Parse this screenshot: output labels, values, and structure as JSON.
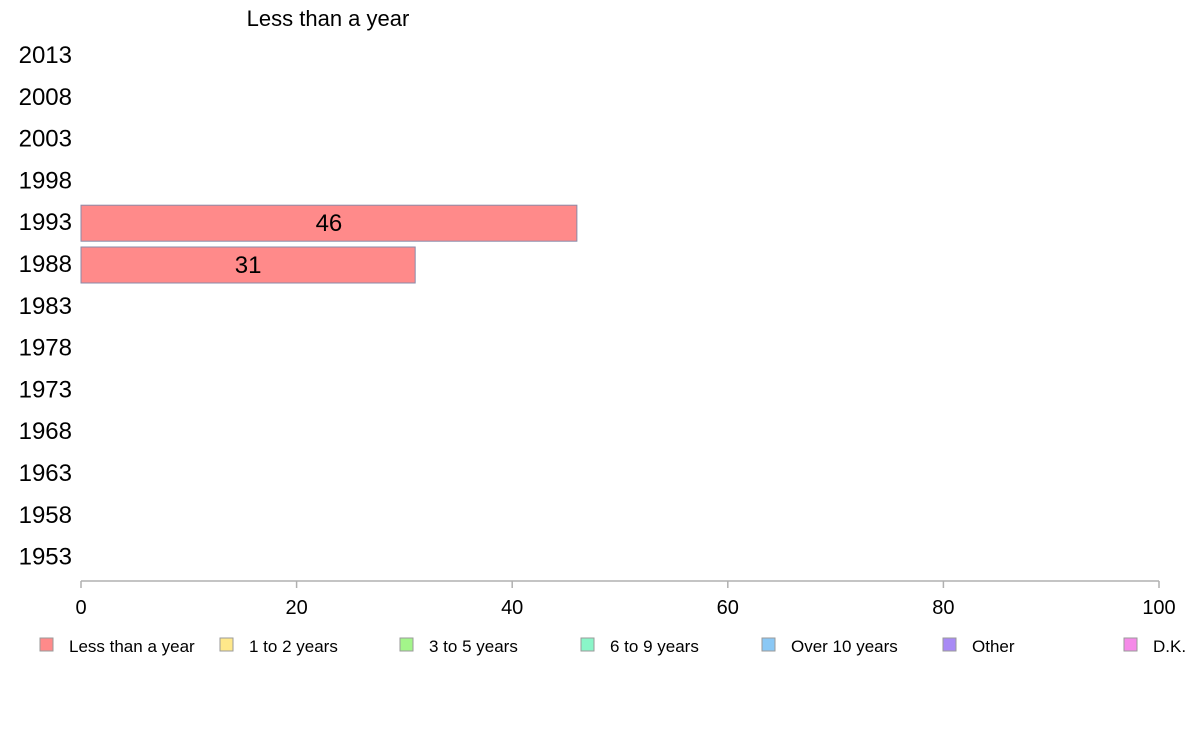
{
  "chart_data": {
    "type": "bar",
    "orientation": "horizontal",
    "stacked": true,
    "title": "Less than a year",
    "categories": [
      "2013",
      "2008",
      "2003",
      "1998",
      "1993",
      "1988",
      "1983",
      "1978",
      "1973",
      "1968",
      "1963",
      "1958",
      "1953"
    ],
    "series": [
      {
        "name": "Less than a year",
        "color": "#ff8a8a",
        "values": [
          null,
          null,
          null,
          null,
          46,
          31,
          null,
          null,
          null,
          null,
          null,
          null,
          null
        ]
      },
      {
        "name": "1 to 2 years",
        "color": "#ffe88a",
        "values": [
          null,
          null,
          null,
          null,
          null,
          null,
          null,
          null,
          null,
          null,
          null,
          null,
          null
        ]
      },
      {
        "name": "3 to 5 years",
        "color": "#a3f58a",
        "values": [
          null,
          null,
          null,
          null,
          null,
          null,
          null,
          null,
          null,
          null,
          null,
          null,
          null
        ]
      },
      {
        "name": "6 to 9 years",
        "color": "#8af5c8",
        "values": [
          null,
          null,
          null,
          null,
          null,
          null,
          null,
          null,
          null,
          null,
          null,
          null,
          null
        ]
      },
      {
        "name": "Over 10 years",
        "color": "#8ac8f5",
        "values": [
          null,
          null,
          null,
          null,
          null,
          null,
          null,
          null,
          null,
          null,
          null,
          null,
          null
        ]
      },
      {
        "name": "Other",
        "color": "#a88af5",
        "values": [
          null,
          null,
          null,
          null,
          null,
          null,
          null,
          null,
          null,
          null,
          null,
          null,
          null
        ]
      },
      {
        "name": "D.K.",
        "color": "#f58ae8",
        "values": [
          null,
          null,
          null,
          null,
          null,
          null,
          null,
          null,
          null,
          null,
          null,
          null,
          null
        ]
      }
    ],
    "xlim": [
      0,
      100
    ],
    "xticks": [
      0,
      20,
      40,
      60,
      80,
      100
    ],
    "xlabel": "",
    "ylabel": "",
    "grid": false,
    "legend": "bottom"
  }
}
